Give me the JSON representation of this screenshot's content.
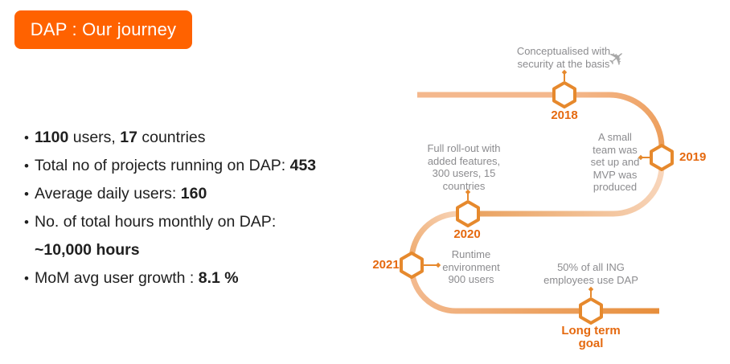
{
  "slide": {
    "title": "DAP : Our journey"
  },
  "bullets": [
    {
      "lines": [
        [
          {
            "t": "1100",
            "b": 1
          },
          {
            "t": " users, "
          },
          {
            "t": "17",
            "b": 1
          },
          {
            "t": " countries"
          }
        ]
      ]
    },
    {
      "lines": [
        [
          {
            "t": "Total no of projects running on DAP: "
          },
          {
            "t": "453",
            "b": 1
          }
        ]
      ]
    },
    {
      "lines": [
        [
          {
            "t": "Average daily users: "
          },
          {
            "t": "160",
            "b": 1
          }
        ]
      ]
    },
    {
      "lines": [
        [
          {
            "t": "No. of total hours monthly on DAP:"
          }
        ],
        [
          {
            "t": "~10,000 hours",
            "b": 1
          }
        ]
      ]
    },
    {
      "lines": [
        [
          {
            "t": "MoM avg user growth : "
          },
          {
            "t": "8.1 %",
            "b": 1
          }
        ]
      ]
    }
  ],
  "timeline": {
    "milestones": [
      {
        "year": "2018",
        "note": "Conceptualised with\nsecurity at the basis"
      },
      {
        "year": "2019",
        "note": "A small\nteam was\nset up and\nMVP was\nproduced"
      },
      {
        "year": "2020",
        "note": "Full roll-out with\nadded features,\n300 users, 15\ncountries"
      },
      {
        "year": "2021",
        "note": "Runtime\nenvironment\n900 users"
      },
      {
        "year": "Long term\ngoal",
        "note": "50% of all ING\nemployees use DAP"
      }
    ],
    "plane_icon": "✈"
  },
  "colors": {
    "brand_orange": "#FF6200",
    "hexagon_orange": "#E6892D",
    "year_text_orange": "#E5690F",
    "note_gray": "#8C8C8F",
    "body_text": "#202020",
    "path_light": "#F4B88D",
    "path_dark": "#E78E3B"
  }
}
